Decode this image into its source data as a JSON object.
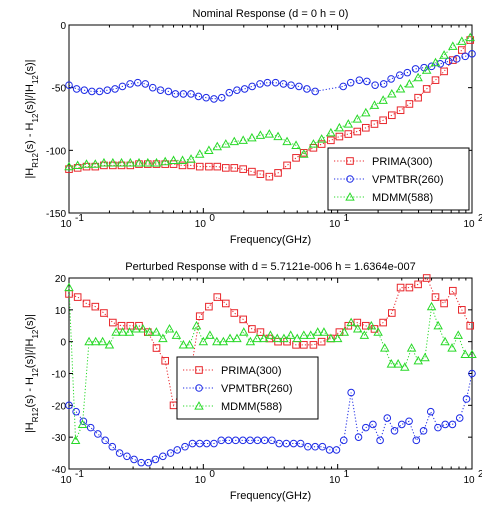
{
  "colors": {
    "prima": "#e8262b",
    "vpmtbr": "#1d2be6",
    "mdmm": "#28d928"
  },
  "chart_data": [
    {
      "type": "line",
      "title": "Nominal Response (d = 0  h = 0)",
      "xlabel": "Frequency(GHz)",
      "ylabel_main": "|H",
      "ylabel_parts": [
        "|H",
        "R12",
        "(s) - H",
        "12",
        "(s)|/|H",
        "12",
        "(s)|"
      ],
      "xscale": "log",
      "xlim": [
        0.1,
        100
      ],
      "ylim": [
        -150,
        0
      ],
      "xtick_decades": [
        {
          "mant": "10",
          "exp": "-1"
        },
        {
          "mant": "10",
          "exp": "0"
        },
        {
          "mant": "10",
          "exp": "1"
        },
        {
          "mant": "10",
          "exp": "2"
        }
      ],
      "yticks": [
        {
          "v": -150,
          "t": "-150"
        },
        {
          "v": -100,
          "t": "-100"
        },
        {
          "v": -50,
          "t": "-50"
        },
        {
          "v": 0,
          "t": "0"
        }
      ],
      "legend": {
        "placement": "lower-right",
        "entries": [
          "PRIMA(300)",
          "VPMTBR(260)",
          "MDMM(588)"
        ]
      },
      "series": [
        {
          "name": "PRIMA(300)",
          "marker": "square",
          "x": [
            0.1,
            0.116,
            0.135,
            0.157,
            0.182,
            0.212,
            0.246,
            0.286,
            0.332,
            0.386,
            0.448,
            0.52,
            0.6,
            0.7,
            0.81,
            0.94,
            1.1,
            1.27,
            1.47,
            1.7,
            1.98,
            2.3,
            2.66,
            3.1,
            3.6,
            4.2,
            4.9,
            5.6,
            6.6,
            7.6,
            8.9,
            10.3,
            12,
            14,
            16.2,
            18.8,
            21.8,
            25.3,
            29.4,
            34.2,
            39.7,
            46,
            53.5,
            62,
            72,
            84,
            97
          ],
          "y": [
            -115,
            -114,
            -113,
            -113,
            -112,
            -112,
            -112,
            -112,
            -111,
            -111,
            -111,
            -111,
            -111,
            -112,
            -112,
            -113,
            -113,
            -113,
            -114,
            -114,
            -115,
            -117,
            -119,
            -121,
            -118,
            -112,
            -106,
            -102,
            -98,
            -95,
            -92,
            -89,
            -87,
            -85,
            -82,
            -79,
            -76,
            -72,
            -68,
            -63,
            -58,
            -51,
            -44,
            -37,
            -28,
            -20,
            -12
          ]
        },
        {
          "name": "VPMTBR(260)",
          "marker": "circle",
          "x": [
            0.1,
            0.114,
            0.13,
            0.148,
            0.169,
            0.193,
            0.22,
            0.25,
            0.285,
            0.325,
            0.37,
            0.42,
            0.48,
            0.55,
            0.62,
            0.71,
            0.81,
            0.92,
            1.05,
            1.2,
            1.37,
            1.56,
            1.78,
            2.03,
            2.31,
            2.64,
            3.0,
            3.45,
            3.95,
            4.5,
            5.15,
            5.9,
            6.8,
            11.0,
            12.5,
            14.5,
            16.5,
            19,
            22,
            25,
            29,
            33,
            38,
            44,
            50,
            58,
            67,
            77,
            89,
            100
          ],
          "y": [
            -48,
            -51,
            -52,
            -53,
            -53,
            -52,
            -51,
            -49,
            -47,
            -46,
            -47,
            -50,
            -52,
            -53,
            -55,
            -55,
            -55,
            -57,
            -58,
            -59,
            -58,
            -54,
            -52,
            -51,
            -49,
            -47,
            -46,
            -46,
            -47,
            -48,
            -49,
            -51,
            -53,
            -49,
            -46,
            -44,
            -45,
            -48,
            -47,
            -43,
            -40,
            -38,
            -35,
            -34,
            -33,
            -31,
            -29,
            -27,
            -25,
            -23
          ]
        },
        {
          "name": "MDMM(588)",
          "marker": "triangle",
          "x": [
            0.1,
            0.116,
            0.135,
            0.157,
            0.182,
            0.212,
            0.246,
            0.286,
            0.332,
            0.386,
            0.448,
            0.52,
            0.6,
            0.7,
            0.81,
            0.94,
            1.1,
            1.27,
            1.47,
            1.7,
            1.98,
            2.3,
            2.66,
            3.1,
            3.6,
            4.2,
            4.9,
            5.6,
            6.6,
            7.6,
            8.9,
            10.3,
            12,
            14,
            16.2,
            18.8,
            21.8,
            25.3,
            29.4,
            34.2,
            39.7,
            46,
            53.5,
            62,
            72,
            84,
            97
          ],
          "y": [
            -113,
            -112,
            -111,
            -111,
            -110,
            -110,
            -110,
            -110,
            -110,
            -110,
            -110,
            -109,
            -108,
            -108,
            -107,
            -103,
            -100,
            -97,
            -95,
            -93,
            -92,
            -90,
            -88,
            -87,
            -89,
            -93,
            -96,
            -103,
            -95,
            -91,
            -86,
            -82,
            -79,
            -75,
            -70,
            -64,
            -60,
            -55,
            -51,
            -47,
            -42,
            -36,
            -30,
            -24,
            -17,
            -13,
            -10
          ]
        }
      ]
    },
    {
      "type": "line",
      "title": "Perturbed Response with d = 5.7121e-006  h = 1.6364e-007",
      "xlabel": "Frequency(GHz)",
      "ylabel_parts": [
        "|H",
        "R12",
        "(s) - H",
        "12",
        "(s)|/|H",
        "12",
        "(s)|"
      ],
      "xscale": "log",
      "xlim": [
        0.1,
        100
      ],
      "ylim": [
        -40,
        20
      ],
      "xtick_decades": [
        {
          "mant": "10",
          "exp": "-1"
        },
        {
          "mant": "10",
          "exp": "0"
        },
        {
          "mant": "10",
          "exp": "1"
        },
        {
          "mant": "10",
          "exp": "2"
        }
      ],
      "yticks": [
        {
          "v": -40,
          "t": "-40"
        },
        {
          "v": -30,
          "t": "-30"
        },
        {
          "v": -20,
          "t": "-20"
        },
        {
          "v": -10,
          "t": "-10"
        },
        {
          "v": 0,
          "t": "0"
        },
        {
          "v": 10,
          "t": "10"
        },
        {
          "v": 20,
          "t": "20"
        }
      ],
      "legend": {
        "placement": "center",
        "entries": [
          "PRIMA(300)",
          "VPMTBR(260)",
          "MDMM(588)"
        ]
      },
      "series": [
        {
          "name": "PRIMA(300)",
          "marker": "square",
          "x": [
            0.1,
            0.116,
            0.135,
            0.157,
            0.182,
            0.212,
            0.246,
            0.286,
            0.332,
            0.386,
            0.448,
            0.52,
            0.6,
            0.7,
            0.81,
            0.94,
            1.1,
            1.27,
            1.47,
            1.7,
            1.98,
            2.3,
            2.66,
            3.1,
            3.6,
            4.2,
            4.9,
            5.6,
            6.6,
            7.6,
            8.9,
            10.3,
            12,
            14,
            16.2,
            18.8,
            21.8,
            25.3,
            29.4,
            34.2,
            39.7,
            46,
            53.5,
            62,
            72,
            84,
            97
          ],
          "y": [
            15,
            14,
            12,
            11,
            9,
            6,
            5,
            5,
            5,
            3,
            -2,
            -6,
            -20,
            -14,
            -9,
            8,
            11,
            14,
            12,
            9,
            7,
            4,
            3,
            1,
            0,
            0,
            -1,
            -1,
            -1,
            0,
            1,
            3,
            5,
            6,
            5,
            4,
            6,
            9,
            17,
            17,
            18,
            20,
            14,
            12,
            16,
            10,
            5
          ]
        },
        {
          "name": "VPMTBR(260)",
          "marker": "circle",
          "x": [
            0.1,
            0.113,
            0.128,
            0.145,
            0.164,
            0.186,
            0.21,
            0.238,
            0.27,
            0.305,
            0.345,
            0.39,
            0.44,
            0.5,
            0.57,
            0.64,
            0.73,
            0.83,
            0.94,
            1.06,
            1.2,
            1.36,
            1.54,
            1.74,
            1.97,
            2.23,
            2.53,
            2.86,
            3.24,
            3.67,
            4.15,
            4.7,
            5.3,
            6.0,
            6.8,
            7.7,
            8.7,
            9.8,
            11.1,
            12.6,
            14.3,
            16.2,
            18.3,
            20.7,
            23.4,
            26.5,
            30,
            34,
            38.5,
            43.6,
            49.3,
            55.8,
            63.2,
            71.5,
            81,
            91,
            100
          ],
          "y": [
            -20,
            -22,
            -25,
            -27,
            -29,
            -31,
            -33,
            -35,
            -36,
            -37,
            -38,
            -38,
            -37,
            -36,
            -35,
            -34,
            -33,
            -32,
            -32,
            -32,
            -32,
            -31,
            -31,
            -31,
            -31,
            -31,
            -31,
            -31,
            -31,
            -32,
            -32,
            -32,
            -32,
            -33,
            -33,
            -33,
            -34,
            -34,
            -31,
            -16,
            -30,
            -27,
            -26,
            -31,
            -24,
            -28,
            -26,
            -25,
            -31,
            -28,
            -22,
            -27,
            -26,
            -26,
            -24,
            -18,
            -10
          ]
        },
        {
          "name": "MDMM(588)",
          "marker": "triangle",
          "x": [
            0.1,
            0.112,
            0.126,
            0.141,
            0.158,
            0.178,
            0.2,
            0.224,
            0.251,
            0.282,
            0.316,
            0.355,
            0.398,
            0.447,
            0.5,
            0.56,
            0.63,
            0.71,
            0.79,
            0.89,
            1.0,
            1.12,
            1.26,
            1.41,
            1.58,
            1.78,
            2.0,
            2.24,
            2.51,
            2.82,
            3.16,
            3.55,
            3.98,
            4.47,
            5.0,
            5.6,
            6.3,
            7.1,
            7.9,
            8.9,
            10,
            11.2,
            12.6,
            14.1,
            15.8,
            17.8,
            20,
            22.4,
            25.1,
            28.2,
            31.6,
            35.5,
            39.8,
            44.7,
            50,
            56,
            63,
            71,
            79,
            89,
            100
          ],
          "y": [
            17,
            -31,
            -26,
            0,
            0,
            0,
            -1,
            3,
            3,
            3,
            4,
            4,
            3,
            3,
            1,
            4,
            2,
            -1,
            -1,
            5,
            0,
            2,
            0,
            0,
            1,
            1,
            3,
            0,
            1,
            1,
            2,
            1,
            1,
            2,
            1,
            2,
            2,
            3,
            3,
            1,
            1,
            3,
            6,
            4,
            2,
            5,
            3,
            -2,
            -7,
            -7,
            -8,
            -2,
            -6,
            -5,
            11,
            5,
            0,
            -2,
            2,
            -4,
            -4
          ]
        }
      ]
    }
  ]
}
